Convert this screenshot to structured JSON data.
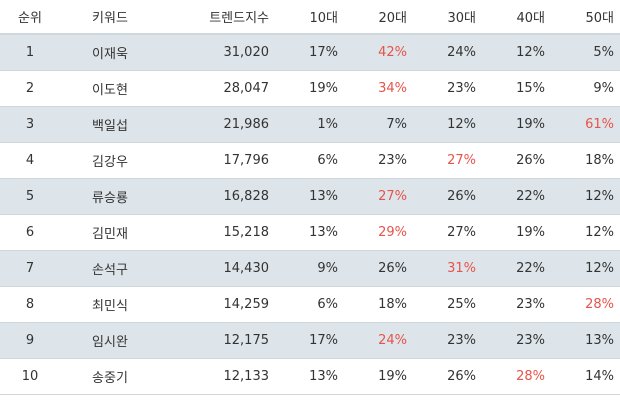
{
  "headers": [
    "순위",
    "키워드",
    "트렌드지수",
    "10대",
    "20대",
    "30대",
    "40대",
    "50대"
  ],
  "highlight_color": "#e8534a",
  "rows": [
    {
      "rank": "1",
      "keyword": "이재욱",
      "index": "31,020",
      "a10": "17%",
      "a20": "42%",
      "a30": "24%",
      "a40": "12%",
      "a50": "5%",
      "highlight": "a20"
    },
    {
      "rank": "2",
      "keyword": "이도현",
      "index": "28,047",
      "a10": "19%",
      "a20": "34%",
      "a30": "23%",
      "a40": "15%",
      "a50": "9%",
      "highlight": "a20"
    },
    {
      "rank": "3",
      "keyword": "백일섭",
      "index": "21,986",
      "a10": "1%",
      "a20": "7%",
      "a30": "12%",
      "a40": "19%",
      "a50": "61%",
      "highlight": "a50"
    },
    {
      "rank": "4",
      "keyword": "김강우",
      "index": "17,796",
      "a10": "6%",
      "a20": "23%",
      "a30": "27%",
      "a40": "26%",
      "a50": "18%",
      "highlight": "a30"
    },
    {
      "rank": "5",
      "keyword": "류승룡",
      "index": "16,828",
      "a10": "13%",
      "a20": "27%",
      "a30": "26%",
      "a40": "22%",
      "a50": "12%",
      "highlight": "a20"
    },
    {
      "rank": "6",
      "keyword": "김민재",
      "index": "15,218",
      "a10": "13%",
      "a20": "29%",
      "a30": "27%",
      "a40": "19%",
      "a50": "12%",
      "highlight": "a20"
    },
    {
      "rank": "7",
      "keyword": "손석구",
      "index": "14,430",
      "a10": "9%",
      "a20": "26%",
      "a30": "31%",
      "a40": "22%",
      "a50": "12%",
      "highlight": "a30"
    },
    {
      "rank": "8",
      "keyword": "최민식",
      "index": "14,259",
      "a10": "6%",
      "a20": "18%",
      "a30": "25%",
      "a40": "23%",
      "a50": "28%",
      "highlight": "a50"
    },
    {
      "rank": "9",
      "keyword": "임시완",
      "index": "12,175",
      "a10": "17%",
      "a20": "24%",
      "a30": "23%",
      "a40": "23%",
      "a50": "13%",
      "highlight": "a20"
    },
    {
      "rank": "10",
      "keyword": "송중기",
      "index": "12,133",
      "a10": "13%",
      "a20": "19%",
      "a30": "26%",
      "a40": "28%",
      "a50": "14%",
      "highlight": "a40"
    }
  ]
}
